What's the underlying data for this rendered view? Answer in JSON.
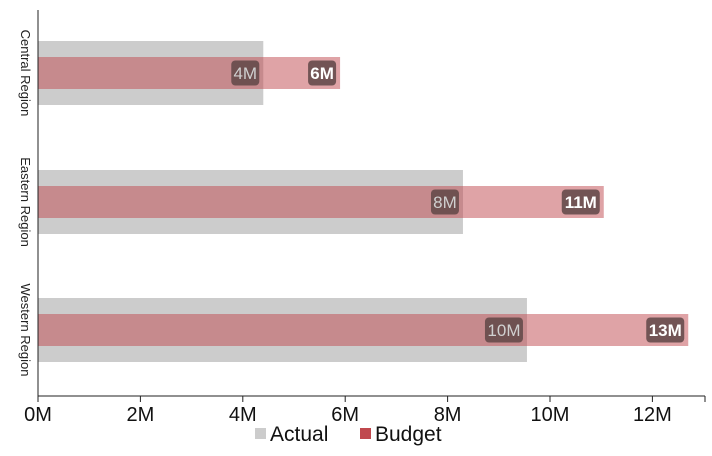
{
  "chart_data": {
    "type": "bar",
    "orientation": "horizontal",
    "title": "",
    "xlabel": "",
    "ylabel": "",
    "categories": [
      "Central Region",
      "Eastern Region",
      "Western Region"
    ],
    "series": [
      {
        "name": "Actual",
        "color": "#cccccc",
        "values": [
          4400000,
          8300000,
          9550000
        ],
        "labels": [
          "4M",
          "8M",
          "10M"
        ]
      },
      {
        "name": "Budget",
        "color": "#c0484e",
        "values": [
          5900000,
          11050000,
          12700000
        ],
        "labels": [
          "6M",
          "11M",
          "13M"
        ]
      }
    ],
    "xlim": [
      0,
      13000000
    ],
    "x_ticks": [
      0,
      2000000,
      4000000,
      6000000,
      8000000,
      10000000,
      12000000
    ],
    "x_tick_labels": [
      "0M",
      "2M",
      "4M",
      "6M",
      "8M",
      "10M",
      "12M"
    ],
    "grid": false,
    "legend": {
      "position": "bottom",
      "entries": [
        "Actual",
        "Budget"
      ]
    },
    "label_box_color": "#5f4646",
    "actual_label_text_color": "#d0d0d0",
    "budget_label_text_color": "#ffffff"
  }
}
